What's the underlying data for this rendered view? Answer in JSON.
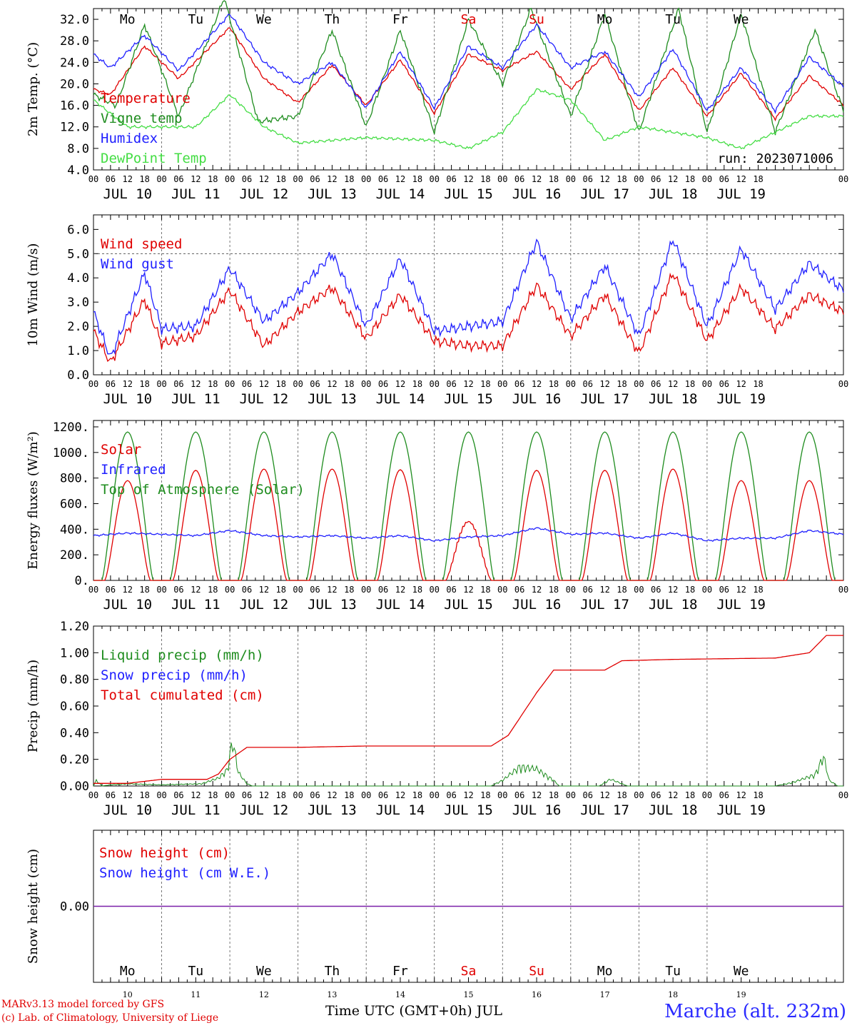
{
  "chart_data": [
    {
      "id": "temperature",
      "type": "line",
      "ylabel": "2m Temp. (°C)",
      "ylim": [
        4,
        34
      ],
      "yticks": [
        "4.0",
        "8.0",
        "12.0",
        "16.0",
        "20.0",
        "24.0",
        "28.0",
        "32.0"
      ],
      "run_label": "run: 2023071006",
      "legend": [
        "Temperature",
        "Vigne temp",
        "Humidex",
        "DewPoint Temp"
      ],
      "series": [
        {
          "name": "Temperature",
          "color": "#e00000",
          "values": [
            [
              0,
              19
            ],
            [
              6,
              18
            ],
            [
              18,
              27
            ],
            [
              30,
              21
            ],
            [
              48,
              30.5
            ],
            [
              60,
              21
            ],
            [
              72,
              16.5
            ],
            [
              84,
              23.5
            ],
            [
              96,
              16
            ],
            [
              108,
              24.5
            ],
            [
              120,
              14.5
            ],
            [
              132,
              25.5
            ],
            [
              144,
              22.5
            ],
            [
              156,
              26
            ],
            [
              168,
              19
            ],
            [
              180,
              25.5
            ],
            [
              192,
              15
            ],
            [
              204,
              23
            ],
            [
              216,
              14
            ],
            [
              228,
              22
            ],
            [
              240,
              13.5
            ],
            [
              252,
              21.5
            ],
            [
              264,
              16
            ]
          ]
        },
        {
          "name": "Vigne temp",
          "color": "#1e8c1e",
          "values": [
            [
              0,
              18
            ],
            [
              8,
              16
            ],
            [
              18,
              31
            ],
            [
              30,
              14
            ],
            [
              46,
              36
            ],
            [
              58,
              13
            ],
            [
              72,
              14
            ],
            [
              84,
              30
            ],
            [
              96,
              12
            ],
            [
              108,
              30
            ],
            [
              120,
              11
            ],
            [
              132,
              32
            ],
            [
              144,
              20
            ],
            [
              154,
              34
            ],
            [
              168,
              14
            ],
            [
              180,
              33
            ],
            [
              192,
              11
            ],
            [
              206,
              34
            ],
            [
              216,
              11
            ],
            [
              228,
              33
            ],
            [
              240,
              11
            ],
            [
              254,
              30
            ],
            [
              264,
              15
            ]
          ]
        },
        {
          "name": "Humidex",
          "color": "#2020ff",
          "values": [
            [
              0,
              25.5
            ],
            [
              6,
              23
            ],
            [
              18,
              29
            ],
            [
              30,
              22.5
            ],
            [
              48,
              33
            ],
            [
              60,
              24
            ],
            [
              72,
              20
            ],
            [
              84,
              24
            ],
            [
              96,
              15.5
            ],
            [
              108,
              26
            ],
            [
              120,
              15.5
            ],
            [
              132,
              27
            ],
            [
              144,
              23
            ],
            [
              156,
              31
            ],
            [
              168,
              23
            ],
            [
              180,
              26
            ],
            [
              192,
              17.5
            ],
            [
              204,
              26.5
            ],
            [
              216,
              15
            ],
            [
              228,
              23
            ],
            [
              240,
              15
            ],
            [
              252,
              25
            ],
            [
              264,
              19.5
            ]
          ]
        },
        {
          "name": "DewPoint Temp",
          "color": "#44dd44",
          "values": [
            [
              0,
              17
            ],
            [
              12,
              12
            ],
            [
              36,
              12
            ],
            [
              48,
              18
            ],
            [
              60,
              12
            ],
            [
              72,
              9
            ],
            [
              96,
              10
            ],
            [
              120,
              9.5
            ],
            [
              132,
              8
            ],
            [
              144,
              11
            ],
            [
              156,
              19
            ],
            [
              168,
              17
            ],
            [
              180,
              9.5
            ],
            [
              192,
              12
            ],
            [
              204,
              11
            ],
            [
              216,
              10
            ],
            [
              228,
              8
            ],
            [
              240,
              11
            ],
            [
              252,
              14
            ],
            [
              264,
              14
            ]
          ]
        }
      ]
    },
    {
      "id": "wind",
      "type": "line",
      "ylabel": "10m Wind (m/s)",
      "ylim": [
        0,
        6.6
      ],
      "yticks": [
        "0.0",
        "1.0",
        "2.0",
        "3.0",
        "4.0",
        "5.0",
        "6.0"
      ],
      "legend": [
        "Wind speed",
        "Wind gust"
      ],
      "series": [
        {
          "name": "Wind speed",
          "color": "#e00000",
          "values": [
            [
              0,
              1.8
            ],
            [
              6,
              0.5
            ],
            [
              18,
              3.1
            ],
            [
              24,
              1.3
            ],
            [
              36,
              1.6
            ],
            [
              48,
              3.5
            ],
            [
              60,
              1.2
            ],
            [
              72,
              2.6
            ],
            [
              84,
              3.6
            ],
            [
              96,
              1.5
            ],
            [
              108,
              3.3
            ],
            [
              120,
              1.4
            ],
            [
              132,
              1.2
            ],
            [
              144,
              1.2
            ],
            [
              156,
              3.7
            ],
            [
              168,
              1.6
            ],
            [
              180,
              3.3
            ],
            [
              192,
              0.9
            ],
            [
              204,
              4.2
            ],
            [
              216,
              1.4
            ],
            [
              228,
              3.6
            ],
            [
              240,
              1.9
            ],
            [
              252,
              3.3
            ],
            [
              264,
              2.6
            ]
          ]
        },
        {
          "name": "Wind gust",
          "color": "#2020ff",
          "values": [
            [
              0,
              2.6
            ],
            [
              6,
              0.7
            ],
            [
              18,
              4.2
            ],
            [
              24,
              1.9
            ],
            [
              36,
              2.0
            ],
            [
              48,
              4.4
            ],
            [
              60,
              2.2
            ],
            [
              72,
              3.4
            ],
            [
              84,
              5.0
            ],
            [
              96,
              2.0
            ],
            [
              108,
              4.8
            ],
            [
              120,
              1.8
            ],
            [
              132,
              2.0
            ],
            [
              144,
              2.2
            ],
            [
              156,
              5.5
            ],
            [
              168,
              2.3
            ],
            [
              180,
              4.5
            ],
            [
              192,
              1.6
            ],
            [
              204,
              5.6
            ],
            [
              216,
              2.0
            ],
            [
              228,
              5.2
            ],
            [
              240,
              2.7
            ],
            [
              252,
              4.6
            ],
            [
              264,
              3.5
            ]
          ]
        }
      ]
    },
    {
      "id": "energy",
      "type": "line",
      "ylabel": "Energy fluxes (W/m²)",
      "ylim": [
        0,
        1250
      ],
      "yticks": [
        "0.",
        "200.",
        "400.",
        "600.",
        "800.",
        "1000.",
        "1200."
      ],
      "legend": [
        "Solar",
        "Infrared",
        "Top of Atmosphere (Solar)"
      ],
      "solar_peaks": [
        780,
        860,
        870,
        870,
        865,
        520,
        860,
        860,
        870,
        780
      ],
      "toa_peak": 1160,
      "infrared": [
        [
          0,
          350
        ],
        [
          12,
          370
        ],
        [
          24,
          360
        ],
        [
          36,
          350
        ],
        [
          48,
          390
        ],
        [
          60,
          350
        ],
        [
          72,
          340
        ],
        [
          84,
          350
        ],
        [
          96,
          330
        ],
        [
          108,
          350
        ],
        [
          120,
          310
        ],
        [
          132,
          340
        ],
        [
          144,
          350
        ],
        [
          156,
          410
        ],
        [
          168,
          360
        ],
        [
          180,
          370
        ],
        [
          192,
          330
        ],
        [
          204,
          370
        ],
        [
          216,
          310
        ],
        [
          228,
          330
        ],
        [
          240,
          330
        ],
        [
          252,
          390
        ],
        [
          264,
          360
        ]
      ],
      "colors": {
        "solar": "#e00000",
        "infrared": "#2020ff",
        "toa": "#1e8c1e"
      }
    },
    {
      "id": "precip",
      "type": "line",
      "ylabel": "Precip (mm/h)",
      "ylim": [
        0,
        1.2
      ],
      "yticks": [
        "0.00",
        "0.20",
        "0.40",
        "0.60",
        "0.80",
        "1.00",
        "1.20"
      ],
      "legend": [
        "Liquid precip (mm/h)",
        "Snow precip (mm/h)",
        "Total cumulated (cm)"
      ],
      "cumulated": [
        [
          0,
          0.02
        ],
        [
          12,
          0.02
        ],
        [
          24,
          0.05
        ],
        [
          40,
          0.05
        ],
        [
          44,
          0.09
        ],
        [
          48,
          0.2
        ],
        [
          54,
          0.29
        ],
        [
          72,
          0.29
        ],
        [
          96,
          0.3
        ],
        [
          140,
          0.3
        ],
        [
          146,
          0.38
        ],
        [
          156,
          0.7
        ],
        [
          162,
          0.87
        ],
        [
          180,
          0.87
        ],
        [
          186,
          0.94
        ],
        [
          204,
          0.95
        ],
        [
          240,
          0.96
        ],
        [
          252,
          1.0
        ],
        [
          258,
          1.13
        ],
        [
          264,
          1.13
        ]
      ],
      "liquid": [
        [
          0,
          0
        ],
        [
          1,
          0.05
        ],
        [
          3,
          0
        ],
        [
          6,
          0.01
        ],
        [
          12,
          0.02
        ],
        [
          24,
          0.01
        ],
        [
          38,
          0.02
        ],
        [
          44,
          0.07
        ],
        [
          47,
          0.14
        ],
        [
          49,
          0.4
        ],
        [
          51,
          0.12
        ],
        [
          54,
          0.02
        ],
        [
          56,
          0
        ],
        [
          140,
          0
        ],
        [
          144,
          0.05
        ],
        [
          150,
          0.17
        ],
        [
          156,
          0.15
        ],
        [
          162,
          0.05
        ],
        [
          164,
          0
        ],
        [
          178,
          0
        ],
        [
          182,
          0.06
        ],
        [
          186,
          0.02
        ],
        [
          188,
          0
        ],
        [
          240,
          0
        ],
        [
          246,
          0.03
        ],
        [
          254,
          0.1
        ],
        [
          257,
          0.26
        ],
        [
          259,
          0.05
        ],
        [
          262,
          0
        ]
      ],
      "colors": {
        "liquid": "#1e8c1e",
        "snow": "#2020ff",
        "cum": "#e00000"
      }
    },
    {
      "id": "snow",
      "type": "line",
      "ylabel": "Snow height (cm)",
      "ytick": "0.00",
      "legend": [
        "Snow height (cm)",
        "Snow height (cm W.E.)"
      ],
      "value": 0.0
    }
  ],
  "time_axis": {
    "hours": [
      "00",
      "06",
      "12",
      "18"
    ],
    "final_hour": "00",
    "dates": [
      "JUL 10",
      "JUL 11",
      "JUL 12",
      "JUL 13",
      "JUL 14",
      "JUL 15",
      "JUL 16",
      "JUL 17",
      "JUL 18",
      "JUL 19"
    ],
    "weekdays": [
      "Mo",
      "Tu",
      "We",
      "Th",
      "Fr",
      "Sa",
      "Su",
      "Mo",
      "Tu",
      "We"
    ],
    "weekend_flags": [
      false,
      false,
      false,
      false,
      false,
      true,
      true,
      false,
      false,
      false
    ],
    "day_numbers": [
      "10",
      "11",
      "12",
      "13",
      "14",
      "15",
      "16",
      "17",
      "18",
      "19"
    ],
    "xlabel": "Time UTC (GMT+0h) JUL"
  },
  "footer": {
    "model_line": "MARv3.13 model forced by GFS",
    "copyright_line": "(c) Lab. of Climatology, University of Liege",
    "station": "Marche (alt. 232m)"
  }
}
